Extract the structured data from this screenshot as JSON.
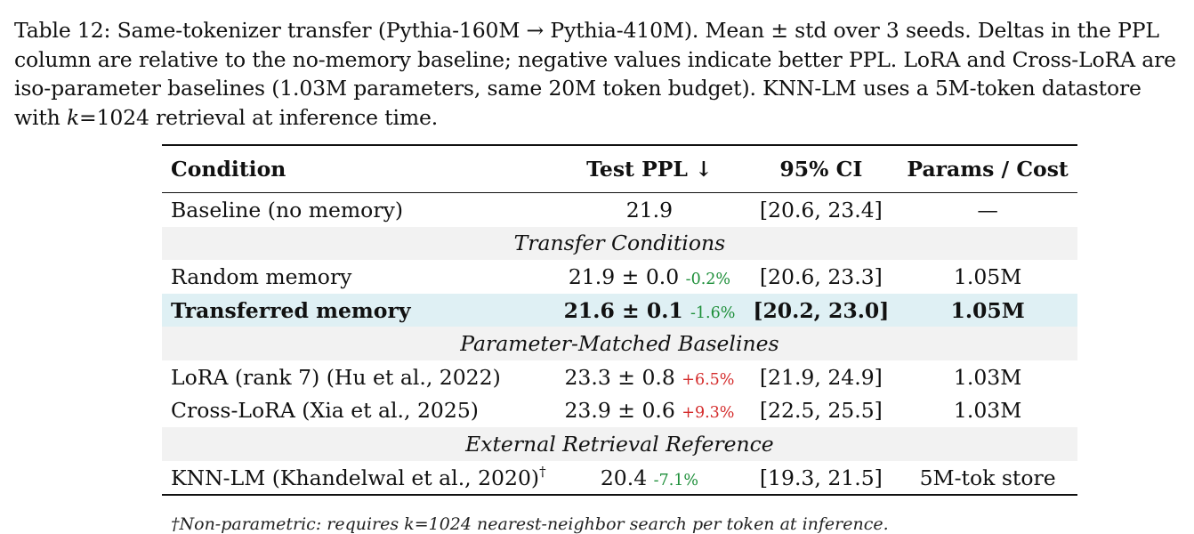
{
  "caption": {
    "label": "Table 12:",
    "text_main": "Same-tokenizer transfer (Pythia-160M → Pythia-410M). Mean ± std over 3 seeds. Deltas in the PPL column are relative to the no-memory baseline; negative values indicate better PPL. LoRA and Cross-LoRA are iso-parameter baselines (1.03M parameters, same 20M token budget). KNN-LM uses a 5M-token datastore with ",
    "k_italic": "k",
    "text_tail": "=1024 retrieval at inference time."
  },
  "table": {
    "headers": [
      "Condition",
      "Test PPL ↓",
      "95% CI",
      "Params / Cost"
    ],
    "baseline": {
      "condition": "Baseline (no memory)",
      "ppl": "21.9",
      "ci": "[20.6, 23.4]",
      "params": "—"
    },
    "section_transfer": "Transfer Conditions",
    "random": {
      "condition": "Random memory",
      "ppl": "21.9 ± 0.0",
      "delta": "-0.2%",
      "ci": "[20.6, 23.3]",
      "params": "1.05M"
    },
    "transferred": {
      "condition": "Transferred memory",
      "ppl": "21.6 ± 0.1",
      "delta": "-1.6%",
      "ci": "[20.2, 23.0]",
      "params": "1.05M"
    },
    "section_param": "Parameter-Matched Baselines",
    "lora": {
      "condition": "LoRA (rank 7) (Hu et al., 2022)",
      "ppl": "23.3 ± 0.8",
      "delta": "+6.5%",
      "ci": "[21.9, 24.9]",
      "params": "1.03M"
    },
    "crosslora": {
      "condition": "Cross-LoRA (Xia et al., 2025)",
      "ppl": "23.9 ± 0.6",
      "delta": "+9.3%",
      "ci": "[22.5, 25.5]",
      "params": "1.03M"
    },
    "section_external": "External Retrieval Reference",
    "knn": {
      "condition": "KNN-LM (Khandelwal et al., 2020)",
      "dagger": "†",
      "ppl": "20.4",
      "delta": "-7.1%",
      "ci": "[19.3, 21.5]",
      "params": "5M-tok store"
    }
  },
  "footnote": "†Non-parametric: requires k=1024 nearest-neighbor search per token at inference."
}
